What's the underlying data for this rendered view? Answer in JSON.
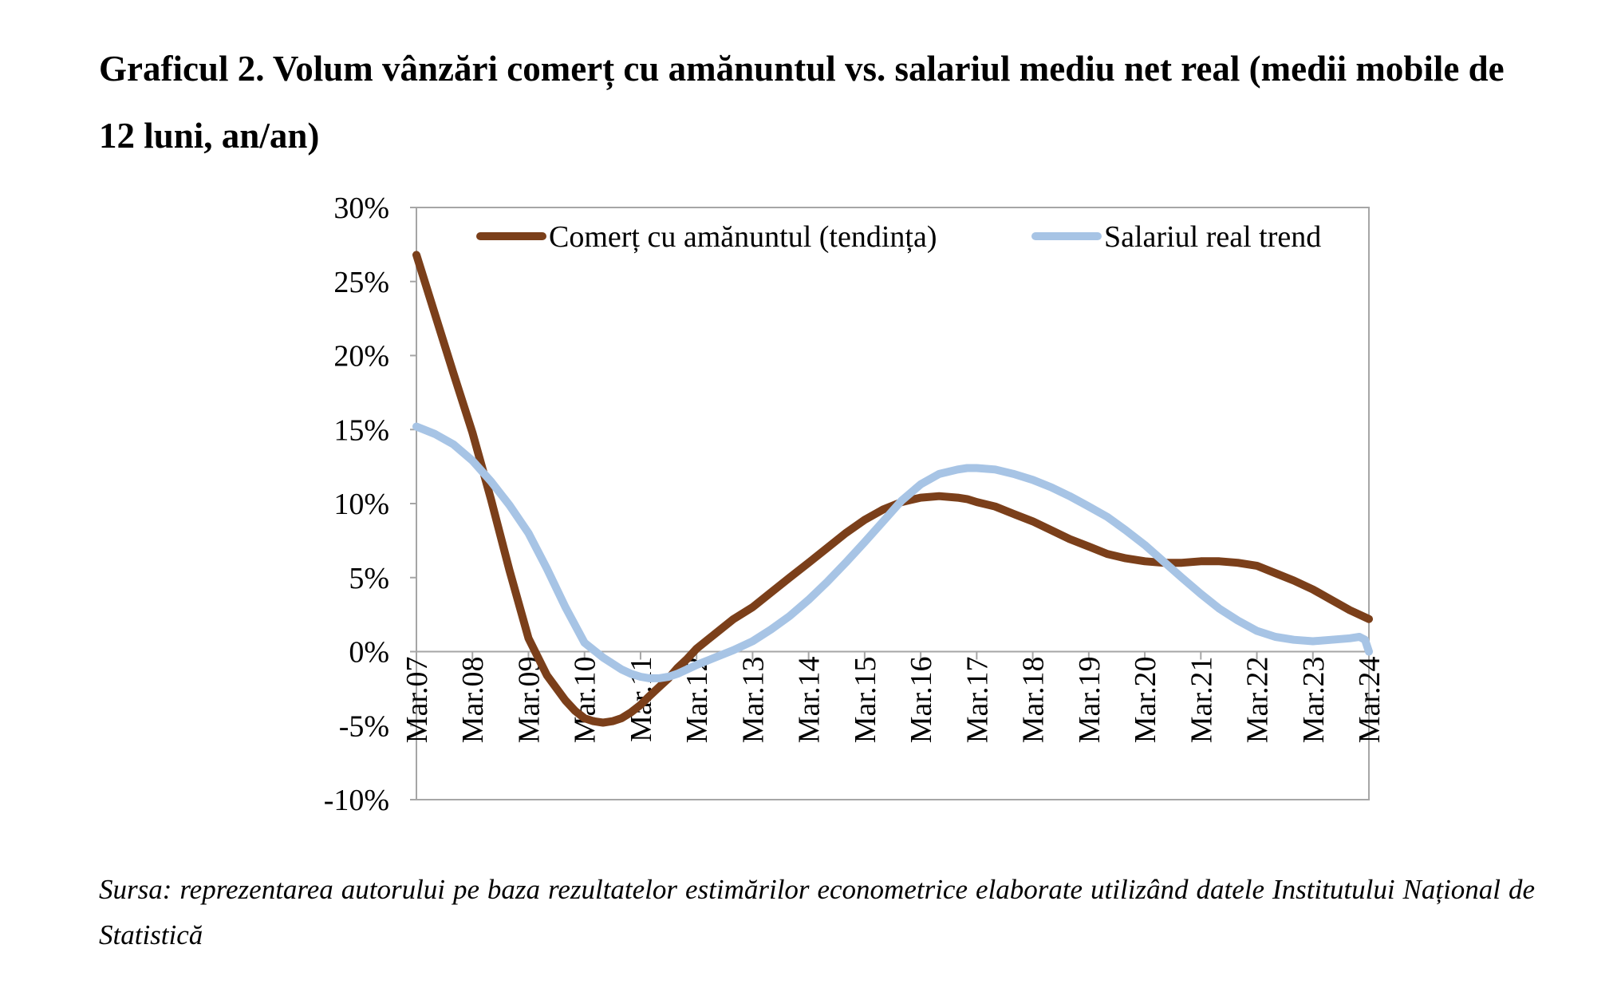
{
  "figure": {
    "title": "Graficul 2. Volum vânzări comerț cu amănuntul vs. salariul mediu net real (medii mobile de 12 luni, an/an)",
    "source_note": "Sursa: reprezentarea autorului pe baza rezultatelor estimărilor econometrice elaborate utilizând datele Institutului Național de Statistică"
  },
  "chart_data": {
    "type": "line",
    "title": "",
    "xlabel": "",
    "ylabel": "",
    "x_categories": [
      "Mar.07",
      "Mar.08",
      "Mar.09",
      "Mar.10",
      "Mar.11",
      "Mar.12",
      "Mar.13",
      "Mar.14",
      "Mar.15",
      "Mar.16",
      "Mar.17",
      "Mar.18",
      "Mar.19",
      "Mar.20",
      "Mar.21",
      "Mar.22",
      "Mar.23",
      "Mar.24"
    ],
    "y_ticks": [
      30,
      25,
      20,
      15,
      10,
      5,
      0,
      -5,
      -10
    ],
    "y_tick_labels": [
      "30%",
      "25%",
      "20%",
      "15%",
      "10%",
      "5%",
      "0%",
      "-5%",
      "-10%"
    ],
    "ylim": [
      -10,
      30
    ],
    "y_unit": "%",
    "grid": false,
    "legend_position": "top-center",
    "series": [
      {
        "name": "Comerț cu amănuntul (tendința)",
        "color": "#7B3F1A",
        "x": [
          2007.17,
          2007.5,
          2007.83,
          2008.17,
          2008.5,
          2008.83,
          2009.17,
          2009.5,
          2009.83,
          2010.0,
          2010.17,
          2010.33,
          2010.5,
          2010.67,
          2010.83,
          2011.0,
          2011.17,
          2011.33,
          2011.5,
          2011.67,
          2011.83,
          2012.0,
          2012.17,
          2012.5,
          2012.83,
          2013.17,
          2013.5,
          2013.83,
          2014.17,
          2014.5,
          2014.83,
          2015.17,
          2015.5,
          2015.83,
          2016.17,
          2016.5,
          2016.83,
          2017.0,
          2017.17,
          2017.5,
          2017.83,
          2018.17,
          2018.5,
          2018.83,
          2019.17,
          2019.5,
          2019.83,
          2020.17,
          2020.5,
          2020.83,
          2021.17,
          2021.5,
          2021.83,
          2022.17,
          2022.5,
          2022.83,
          2023.17,
          2023.5,
          2023.83,
          2024.17
        ],
        "values": [
          26.8,
          22.8,
          18.8,
          14.8,
          10.3,
          5.5,
          0.9,
          -1.6,
          -3.3,
          -4.0,
          -4.5,
          -4.7,
          -4.8,
          -4.7,
          -4.5,
          -4.1,
          -3.6,
          -3.0,
          -2.4,
          -1.8,
          -1.1,
          -0.5,
          0.2,
          1.2,
          2.2,
          3.0,
          4.0,
          5.0,
          6.0,
          7.0,
          8.0,
          8.9,
          9.6,
          10.1,
          10.4,
          10.5,
          10.4,
          10.3,
          10.1,
          9.8,
          9.3,
          8.8,
          8.2,
          7.6,
          7.1,
          6.6,
          6.3,
          6.1,
          6.0,
          6.0,
          6.1,
          6.1,
          6.0,
          5.8,
          5.3,
          4.8,
          4.2,
          3.5,
          2.8,
          2.2
        ]
      },
      {
        "name": "Salariul real trend",
        "color": "#A7C4E5",
        "x": [
          2007.17,
          2007.5,
          2007.83,
          2008.17,
          2008.5,
          2008.83,
          2009.17,
          2009.5,
          2009.83,
          2010.17,
          2010.5,
          2010.83,
          2011.0,
          2011.17,
          2011.33,
          2011.5,
          2011.67,
          2011.83,
          2012.0,
          2012.17,
          2012.5,
          2012.83,
          2013.17,
          2013.5,
          2013.83,
          2014.17,
          2014.5,
          2014.83,
          2015.17,
          2015.5,
          2015.83,
          2016.17,
          2016.5,
          2016.83,
          2017.0,
          2017.17,
          2017.5,
          2017.83,
          2018.17,
          2018.5,
          2018.83,
          2019.17,
          2019.5,
          2019.83,
          2020.17,
          2020.5,
          2020.83,
          2021.17,
          2021.5,
          2021.83,
          2022.17,
          2022.5,
          2022.83,
          2023.17,
          2023.5,
          2023.83,
          2024.0,
          2024.1,
          2024.17
        ],
        "values": [
          15.2,
          14.7,
          14.0,
          12.9,
          11.5,
          9.9,
          8.0,
          5.6,
          3.0,
          0.6,
          -0.4,
          -1.2,
          -1.5,
          -1.7,
          -1.8,
          -1.8,
          -1.7,
          -1.5,
          -1.2,
          -0.9,
          -0.4,
          0.1,
          0.7,
          1.5,
          2.4,
          3.5,
          4.7,
          6.0,
          7.4,
          8.8,
          10.2,
          11.3,
          12.0,
          12.3,
          12.4,
          12.4,
          12.3,
          12.0,
          11.6,
          11.1,
          10.5,
          9.8,
          9.1,
          8.2,
          7.2,
          6.1,
          5.0,
          3.9,
          2.9,
          2.1,
          1.4,
          1.0,
          0.8,
          0.7,
          0.8,
          0.9,
          1.0,
          0.8,
          0.0
        ]
      }
    ]
  }
}
